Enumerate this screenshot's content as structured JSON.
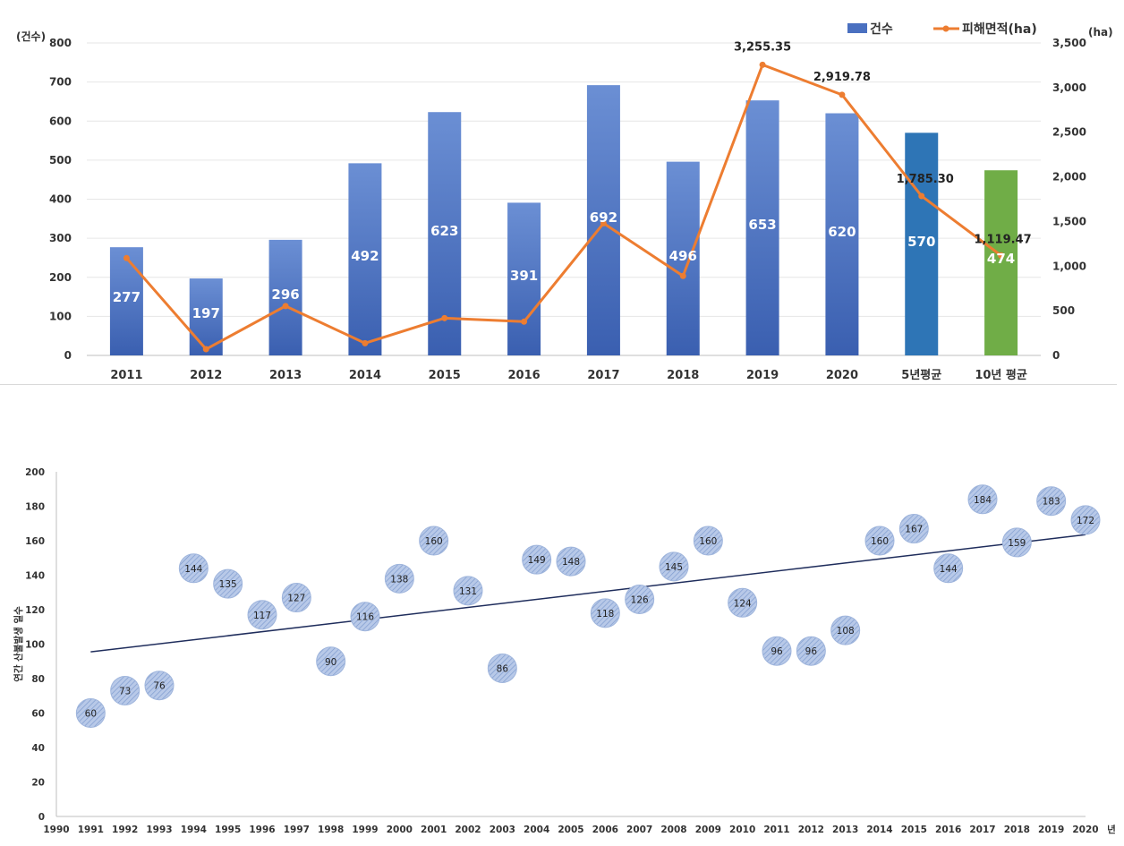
{
  "chart_data": [
    {
      "type": "bar",
      "categories": [
        "2011",
        "2012",
        "2013",
        "2014",
        "2015",
        "2016",
        "2017",
        "2018",
        "2019",
        "2020",
        "5년평균",
        "10년 평균"
      ],
      "series": [
        {
          "name": "건수",
          "axis": "left",
          "values": [
            277,
            197,
            296,
            492,
            623,
            391,
            692,
            496,
            653,
            620,
            570,
            474
          ],
          "colors": [
            "#4a70c0",
            "#4a70c0",
            "#4a70c0",
            "#4a70c0",
            "#4a70c0",
            "#4a70c0",
            "#4a70c0",
            "#4a70c0",
            "#4a70c0",
            "#4a70c0",
            "#2e75b6",
            "#70ad47"
          ]
        },
        {
          "name": "피해면적(ha)",
          "axis": "right",
          "type": "line",
          "color": "#ed7d31",
          "values": [
            1090,
            70,
            553,
            137,
            418,
            378,
            1480,
            890,
            3255.35,
            2919.78,
            1785.3,
            1119.47
          ]
        }
      ],
      "line_labels": [
        {
          "index": 8,
          "text": "3,255.35",
          "color": "#222222"
        },
        {
          "index": 9,
          "text": "2,919.78",
          "color": "#e02b2b"
        },
        {
          "index": 10,
          "text": "1,785.30",
          "color": "#222222"
        },
        {
          "index": 11,
          "text": "1,119.47",
          "color": "#222222"
        }
      ],
      "left_unit": "(건수)",
      "right_unit": "(ha)",
      "ylim_left": [
        0,
        800
      ],
      "yticks_left": [
        "0",
        "100",
        "200",
        "300",
        "400",
        "500",
        "600",
        "700",
        "800"
      ],
      "ylim_right": [
        0,
        3500
      ],
      "yticks_right": [
        "0",
        "500",
        "1,000",
        "1,500",
        "2,000",
        "2,500",
        "3,000",
        "3,500"
      ],
      "legend": [
        "건수",
        "피해면적(ha)"
      ],
      "legend_position": "top-right",
      "grid": true
    },
    {
      "type": "scatter",
      "x": [
        1991,
        1992,
        1993,
        1994,
        1995,
        1996,
        1997,
        1998,
        1999,
        2000,
        2001,
        2002,
        2003,
        2004,
        2005,
        2006,
        2007,
        2008,
        2009,
        2010,
        2011,
        2012,
        2013,
        2014,
        2015,
        2016,
        2017,
        2018,
        2019,
        2020
      ],
      "y": [
        60,
        73,
        76,
        144,
        135,
        117,
        127,
        90,
        116,
        138,
        160,
        131,
        86,
        149,
        148,
        118,
        126,
        145,
        160,
        124,
        96,
        96,
        108,
        160,
        167,
        144,
        184,
        159,
        183,
        172
      ],
      "trendline": {
        "x": [
          1991,
          2020
        ],
        "y": [
          95.5,
          163.5
        ],
        "color": "#1f2d5c"
      },
      "ylabel": "연간 산불발생 일수",
      "xlabel": "년",
      "xlim": [
        1990,
        2020
      ],
      "xticks": [
        "1990",
        "1991",
        "1992",
        "1993",
        "1994",
        "1995",
        "1996",
        "1997",
        "1998",
        "1999",
        "2000",
        "2001",
        "2002",
        "2003",
        "2004",
        "2005",
        "2006",
        "2007",
        "2008",
        "2009",
        "2010",
        "2011",
        "2012",
        "2013",
        "2014",
        "2015",
        "2016",
        "2017",
        "2018",
        "2019",
        "2020"
      ],
      "ylim": [
        0,
        200
      ],
      "yticks": [
        "0",
        "20",
        "40",
        "60",
        "80",
        "100",
        "120",
        "140",
        "160",
        "180",
        "200"
      ],
      "point_color": "#a9bde0",
      "grid": false
    }
  ]
}
